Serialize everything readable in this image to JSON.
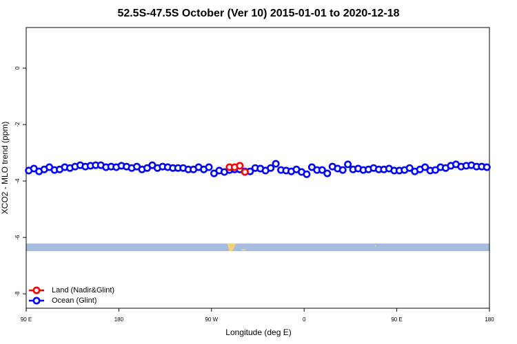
{
  "chart_data": {
    "type": "scatter",
    "title": "52.5S-47.5S October (Ver 10)   2015-01-01 to 2020-12-18",
    "xlabel": "Longitude (deg E)",
    "ylabel": "XCO2 - MLO trend (ppm)",
    "xlim": [
      90,
      540
    ],
    "ylim": [
      -8.51,
      1.44
    ],
    "xticks": [
      {
        "value": 90,
        "label": "90 E"
      },
      180,
      {
        "value": 270,
        "label": "90 W"
      },
      {
        "value": 360,
        "label": "0"
      },
      {
        "value": 450,
        "label": "90 E"
      },
      {
        "value": 540,
        "label": "180"
      }
    ],
    "yticks": [
      0,
      -2,
      -4,
      -6,
      -8
    ],
    "legend": "bottomleft",
    "series": [
      {
        "name": "Ocean (Glint)",
        "color": "#0000ff",
        "x": [
          92.5,
          97.5,
          102.5,
          107.5,
          112.5,
          117.5,
          122.5,
          127.5,
          132.5,
          137.5,
          142.5,
          147.5,
          152.5,
          157.5,
          162.5,
          167.5,
          172.5,
          177.5,
          182.5,
          187.5,
          192.5,
          197.5,
          202.5,
          207.5,
          212.5,
          217.5,
          222.5,
          227.5,
          232.5,
          237.5,
          242.5,
          247.5,
          252.5,
          257.5,
          262.5,
          267.5,
          272.5,
          277.5,
          282.5,
          287.5,
          292.5,
          297.5,
          302.5,
          307.5,
          312.5,
          317.5,
          322.5,
          327.5,
          332.5,
          337.5,
          342.5,
          347.5,
          352.5,
          357.5,
          362.5,
          367.5,
          372.5,
          377.5,
          382.5,
          387.5,
          392.5,
          397.5,
          402.5,
          407.5,
          412.5,
          417.5,
          422.5,
          427.5,
          432.5,
          437.5,
          442.5,
          447.5,
          452.5,
          457.5,
          462.5,
          467.5,
          472.5,
          477.5,
          482.5,
          487.5,
          492.5,
          497.5,
          502.5,
          507.5,
          512.5,
          517.5,
          522.5,
          527.5,
          532.5,
          537.5
        ],
        "values": [
          -3.63,
          -3.56,
          -3.66,
          -3.59,
          -3.51,
          -3.61,
          -3.59,
          -3.51,
          -3.54,
          -3.49,
          -3.44,
          -3.49,
          -3.46,
          -3.44,
          -3.44,
          -3.51,
          -3.49,
          -3.51,
          -3.46,
          -3.49,
          -3.54,
          -3.49,
          -3.59,
          -3.54,
          -3.44,
          -3.54,
          -3.49,
          -3.51,
          -3.54,
          -3.54,
          -3.54,
          -3.59,
          -3.59,
          -3.51,
          -3.59,
          -3.51,
          -3.73,
          -3.63,
          -3.68,
          -3.61,
          -3.59,
          -3.59,
          -3.66,
          -3.66,
          -3.54,
          -3.56,
          -3.63,
          -3.54,
          -3.39,
          -3.61,
          -3.63,
          -3.66,
          -3.59,
          -3.68,
          -3.76,
          -3.51,
          -3.61,
          -3.61,
          -3.73,
          -3.49,
          -3.56,
          -3.61,
          -3.41,
          -3.59,
          -3.56,
          -3.61,
          -3.59,
          -3.54,
          -3.59,
          -3.59,
          -3.56,
          -3.63,
          -3.63,
          -3.61,
          -3.54,
          -3.66,
          -3.59,
          -3.51,
          -3.63,
          -3.61,
          -3.51,
          -3.54,
          -3.46,
          -3.41,
          -3.49,
          -3.46,
          -3.44,
          -3.49,
          -3.49,
          -3.51
        ]
      },
      {
        "name": "Land (Nadir&Glint)",
        "color": "#ff0000",
        "x": [
          287.5,
          292.5,
          297.5,
          302.5
        ],
        "values": [
          -3.51,
          -3.51,
          -3.46,
          -3.68
        ]
      }
    ]
  }
}
